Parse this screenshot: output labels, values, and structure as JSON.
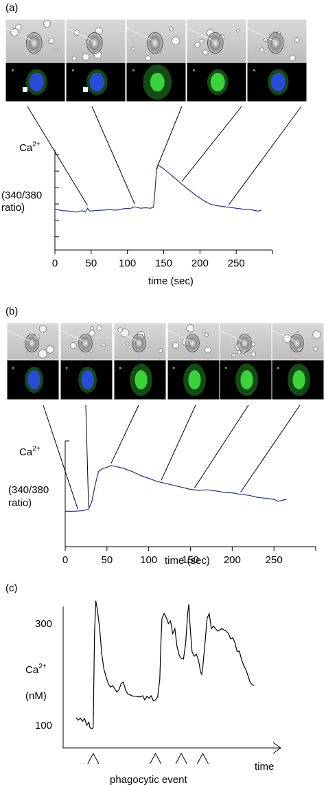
{
  "panels": {
    "a": {
      "label": "(a)"
    },
    "b": {
      "label": "(b)"
    },
    "c": {
      "label": "(c)"
    }
  },
  "colors": {
    "trace_blue": "#1f2f8f",
    "trace_black": "#000000",
    "fluor_blue": "#2a4bd8",
    "fluor_green": "#39d43a"
  },
  "chart_data": [
    {
      "id": "a",
      "type": "line",
      "title": "",
      "ylabel_main": "Ca",
      "ylabel_sup": "2+",
      "ylabel_units": [
        "(340/380",
        "ratio)"
      ],
      "xlabel": "time (sec)",
      "xlim": [
        0,
        300
      ],
      "xticks": [
        0,
        50,
        100,
        150,
        200,
        250
      ],
      "ylim": [
        0,
        1
      ],
      "y_tick_count": 6,
      "y_tick_labels": false,
      "frame_times": [
        45,
        110,
        140,
        175,
        240
      ],
      "series": [
        {
          "color": "#1f2f8f",
          "x": [
            0,
            10,
            20,
            30,
            38,
            42,
            45,
            48,
            55,
            65,
            75,
            85,
            95,
            105,
            110,
            118,
            125,
            132,
            136,
            138,
            140,
            142,
            146,
            150,
            158,
            166,
            175,
            185,
            195,
            205,
            215,
            225,
            235,
            240,
            250,
            260,
            270,
            280,
            285
          ],
          "y": [
            0.36,
            0.345,
            0.34,
            0.33,
            0.345,
            0.33,
            0.37,
            0.34,
            0.345,
            0.35,
            0.355,
            0.35,
            0.365,
            0.37,
            0.385,
            0.37,
            0.375,
            0.37,
            0.38,
            0.55,
            0.75,
            0.82,
            0.8,
            0.78,
            0.73,
            0.68,
            0.62,
            0.56,
            0.5,
            0.45,
            0.41,
            0.395,
            0.385,
            0.38,
            0.37,
            0.36,
            0.355,
            0.34,
            0.35
          ]
        }
      ]
    },
    {
      "id": "b",
      "type": "line",
      "title": "",
      "ylabel_main": "Ca",
      "ylabel_sup": "2+",
      "ylabel_units": [
        "(340/380",
        "ratio)"
      ],
      "xlabel": "time (sec)",
      "xlim": [
        0,
        300
      ],
      "xticks": [
        0,
        50,
        100,
        150,
        200,
        250
      ],
      "ylim": [
        0,
        1
      ],
      "y_tick_count": 0,
      "y_tick_labels": false,
      "frame_times": [
        15,
        28,
        55,
        115,
        155,
        210
      ],
      "series": [
        {
          "color": "#1f2f8f",
          "x": [
            0,
            10,
            20,
            28,
            32,
            36,
            40,
            45,
            50,
            55,
            60,
            70,
            80,
            90,
            100,
            110,
            120,
            130,
            140,
            150,
            160,
            170,
            180,
            190,
            200,
            210,
            220,
            230,
            240,
            250,
            255,
            260,
            265
          ],
          "y": [
            0.28,
            0.28,
            0.285,
            0.3,
            0.38,
            0.55,
            0.68,
            0.71,
            0.72,
            0.74,
            0.73,
            0.71,
            0.68,
            0.64,
            0.61,
            0.58,
            0.56,
            0.54,
            0.52,
            0.5,
            0.49,
            0.495,
            0.485,
            0.47,
            0.465,
            0.45,
            0.44,
            0.42,
            0.41,
            0.4,
            0.38,
            0.39,
            0.4
          ]
        }
      ]
    },
    {
      "id": "c",
      "type": "line",
      "title": "",
      "ylabel_main": "Ca",
      "ylabel_sup": "2+",
      "ylabel_units": [
        "(nM)"
      ],
      "xlabel": "time",
      "event_label": "phagocytic event",
      "xlim": [
        0,
        100
      ],
      "ylim": [
        80,
        340
      ],
      "yticks": [
        100,
        300
      ],
      "event_x": [
        14,
        43,
        55,
        65
      ],
      "series": [
        {
          "color": "#000000",
          "x": [
            6,
            7,
            8,
            9,
            10,
            11,
            12,
            12.5,
            13,
            13.5,
            14,
            14.6,
            15.2,
            16,
            17,
            18,
            19,
            20,
            21,
            22,
            23,
            24,
            25,
            26,
            27,
            28,
            29,
            30,
            31,
            32,
            33,
            34,
            35,
            36,
            37,
            38,
            39,
            40,
            41,
            42,
            43,
            44,
            45,
            45.5,
            46,
            47,
            48,
            49,
            50,
            51,
            52,
            53,
            54,
            55,
            56,
            57,
            58,
            58.5,
            59,
            60,
            61,
            62,
            63,
            64,
            64.5,
            65,
            66,
            67,
            68,
            69,
            70,
            71,
            72,
            73,
            74,
            75,
            76,
            77,
            78,
            79,
            80,
            81,
            82,
            83,
            84,
            85,
            86,
            87,
            88,
            89
          ],
          "y": [
            115,
            110,
            114,
            108,
            113,
            100,
            106,
            95,
            94,
            93,
            96,
            280,
            345,
            325,
            290,
            240,
            210,
            195,
            182,
            175,
            178,
            172,
            165,
            170,
            182,
            185,
            170,
            162,
            160,
            158,
            157,
            157,
            156,
            156,
            158,
            150,
            157,
            153,
            158,
            148,
            150,
            156,
            190,
            260,
            310,
            320,
            312,
            300,
            305,
            280,
            290,
            255,
            238,
            232,
            230,
            260,
            320,
            338,
            300,
            245,
            236,
            240,
            228,
            205,
            200,
            215,
            260,
            310,
            320,
            290,
            295,
            290,
            285,
            288,
            290,
            287,
            285,
            280,
            270,
            272,
            262,
            245,
            246,
            230,
            218,
            210,
            198,
            185,
            180,
            178
          ]
        }
      ]
    }
  ]
}
